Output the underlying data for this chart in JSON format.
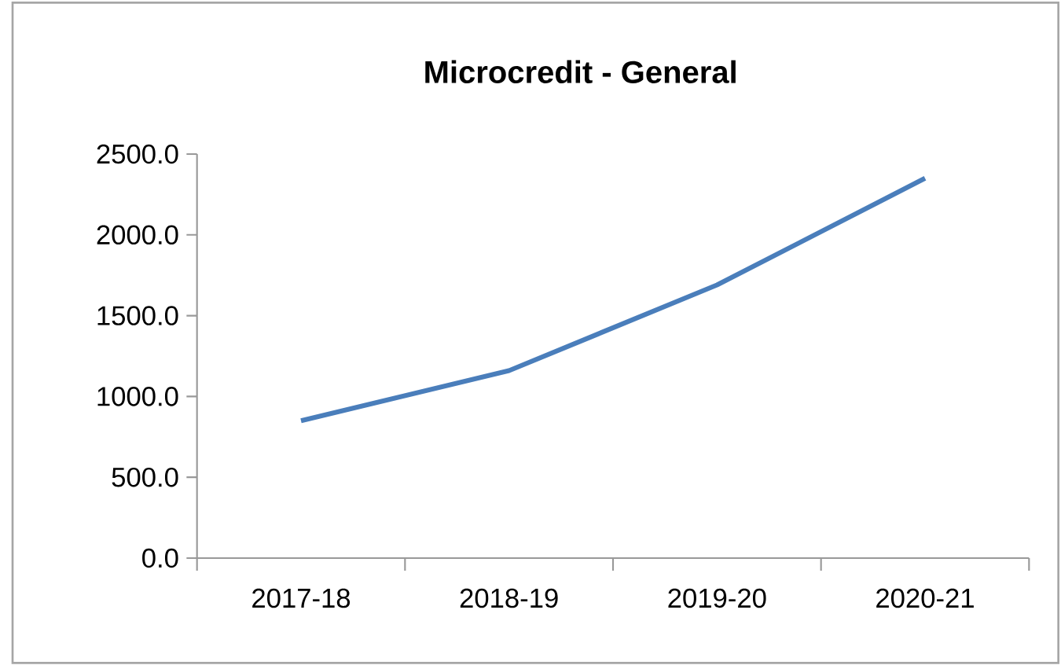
{
  "chart_data": {
    "type": "line",
    "title": "Microcredit - General",
    "categories": [
      "2017-18",
      "2018-19",
      "2019-20",
      "2020-21"
    ],
    "series": [
      {
        "color": "#4a7ebb",
        "values": [
          850,
          1160,
          1690,
          2350
        ]
      }
    ],
    "ylim": [
      0,
      2500
    ],
    "yticks": [
      {
        "value": 0,
        "label": "0.0"
      },
      {
        "value": 500,
        "label": "500.0"
      },
      {
        "value": 1000,
        "label": "1000.0"
      },
      {
        "value": 1500,
        "label": "1500.0"
      },
      {
        "value": 2000,
        "label": "2000.0"
      },
      {
        "value": 2500,
        "label": "2500.0"
      }
    ],
    "grid": false,
    "legend": false,
    "marker": "none",
    "line_style": "solid"
  }
}
